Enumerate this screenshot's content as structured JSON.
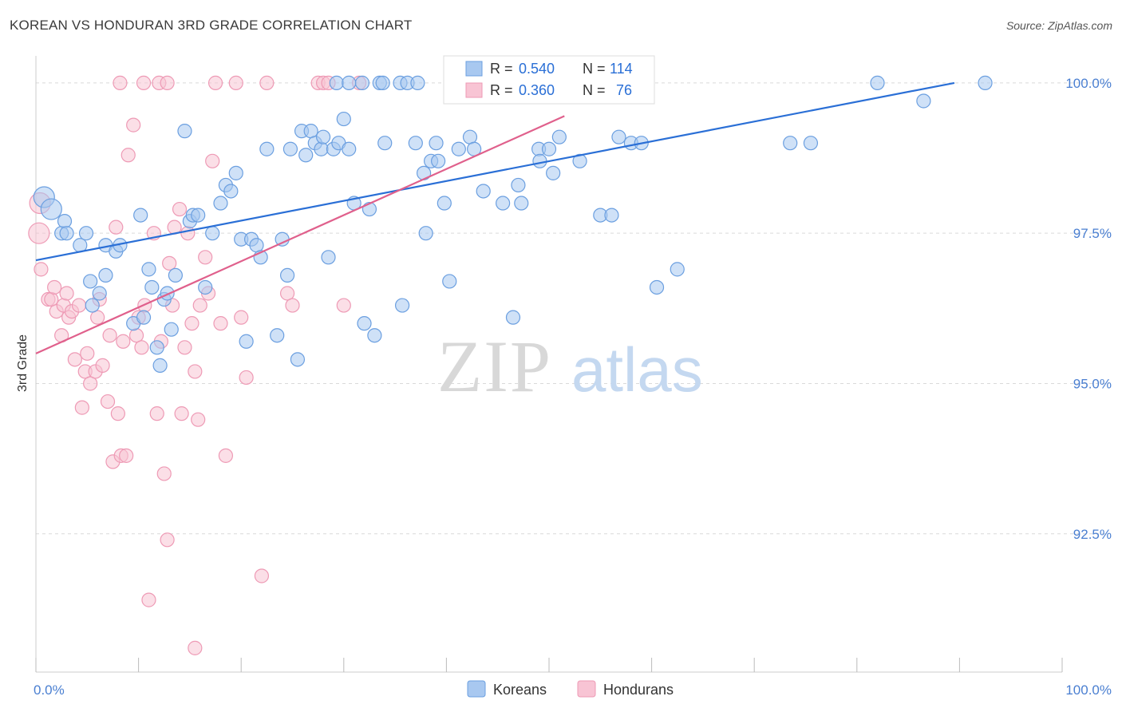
{
  "title": "KOREAN VS HONDURAN 3RD GRADE CORRELATION CHART",
  "source": "Source: ZipAtlas.com",
  "watermark": {
    "zip": "ZIP",
    "atlas": "atlas"
  },
  "colors": {
    "korean_fill": "#a8c8f0",
    "korean_stroke": "#6b9fe0",
    "korean_line": "#2a6fd6",
    "honduran_fill": "#f8c4d4",
    "honduran_stroke": "#ee9ab5",
    "honduran_line": "#e0608c",
    "grid": "#d9d9d9",
    "tick_text": "#4a7fd1"
  },
  "chart_data": {
    "type": "scatter",
    "title": "KOREAN VS HONDURAN 3RD GRADE CORRELATION CHART",
    "xlabel": "",
    "ylabel": "3rd Grade",
    "xlim": [
      0,
      100
    ],
    "ylim": [
      90.2,
      100.45
    ],
    "x_tick_labels": [
      {
        "x": 0,
        "label": "0.0%"
      },
      {
        "x": 100,
        "label": "100.0%"
      }
    ],
    "y_ticks": [
      {
        "y": 100.0,
        "label": "100.0%"
      },
      {
        "y": 97.5,
        "label": "97.5%"
      },
      {
        "y": 95.0,
        "label": "95.0%"
      },
      {
        "y": 92.5,
        "label": "92.5%"
      }
    ],
    "grid": true,
    "legend_position": "top-center",
    "legend": [
      {
        "name": "Koreans",
        "r_label": "R =",
        "r": "0.540",
        "n_label": "N =",
        "n": "114"
      },
      {
        "name": "Hondurans",
        "r_label": "R =",
        "r": "0.360",
        "n_label": "N =",
        "n": "76"
      }
    ],
    "series": [
      {
        "name": "Koreans",
        "trendline": {
          "x": [
            0,
            89.5
          ],
          "y": [
            97.05,
            100.0
          ]
        },
        "points": [
          [
            0.8,
            98.1
          ],
          [
            1.5,
            97.9
          ],
          [
            2.5,
            97.5
          ],
          [
            2.8,
            97.7
          ],
          [
            3.0,
            97.5
          ],
          [
            4.3,
            97.3
          ],
          [
            4.9,
            97.5
          ],
          [
            5.3,
            96.7
          ],
          [
            5.5,
            96.3
          ],
          [
            6.2,
            96.5
          ],
          [
            6.8,
            96.8
          ],
          [
            6.8,
            97.3
          ],
          [
            7.8,
            97.2
          ],
          [
            8.2,
            97.3
          ],
          [
            9.5,
            96.0
          ],
          [
            10.2,
            97.8
          ],
          [
            10.5,
            96.1
          ],
          [
            11.0,
            96.9
          ],
          [
            11.3,
            96.6
          ],
          [
            11.8,
            95.6
          ],
          [
            12.1,
            95.3
          ],
          [
            12.5,
            96.4
          ],
          [
            12.8,
            96.5
          ],
          [
            13.2,
            95.9
          ],
          [
            13.6,
            96.8
          ],
          [
            14.5,
            99.2
          ],
          [
            15.0,
            97.7
          ],
          [
            15.3,
            97.8
          ],
          [
            15.8,
            97.8
          ],
          [
            16.5,
            96.6
          ],
          [
            17.2,
            97.5
          ],
          [
            18.0,
            98.0
          ],
          [
            18.5,
            98.3
          ],
          [
            19.0,
            98.2
          ],
          [
            19.5,
            98.5
          ],
          [
            20.0,
            97.4
          ],
          [
            20.5,
            95.7
          ],
          [
            21.0,
            97.4
          ],
          [
            21.5,
            97.3
          ],
          [
            21.9,
            97.1
          ],
          [
            22.5,
            98.9
          ],
          [
            23.5,
            95.8
          ],
          [
            24.0,
            97.4
          ],
          [
            24.5,
            96.8
          ],
          [
            24.8,
            98.9
          ],
          [
            25.5,
            95.4
          ],
          [
            25.9,
            99.2
          ],
          [
            26.3,
            98.8
          ],
          [
            26.8,
            99.2
          ],
          [
            27.2,
            99.0
          ],
          [
            27.8,
            98.9
          ],
          [
            28.0,
            99.1
          ],
          [
            28.5,
            97.1
          ],
          [
            29.0,
            98.9
          ],
          [
            29.5,
            99.0
          ],
          [
            30.0,
            99.4
          ],
          [
            30.5,
            98.9
          ],
          [
            31.0,
            98.0
          ],
          [
            32.0,
            96.0
          ],
          [
            32.5,
            97.9
          ],
          [
            33.0,
            95.8
          ],
          [
            33.5,
            100.0
          ],
          [
            34.0,
            99.0
          ],
          [
            35.5,
            100.0
          ],
          [
            35.7,
            96.3
          ],
          [
            36.2,
            100.0
          ],
          [
            37.0,
            99.0
          ],
          [
            37.8,
            98.5
          ],
          [
            38.0,
            97.5
          ],
          [
            38.5,
            98.7
          ],
          [
            39.0,
            99.0
          ],
          [
            39.2,
            98.7
          ],
          [
            39.8,
            98.0
          ],
          [
            40.3,
            96.7
          ],
          [
            40.5,
            100.0
          ],
          [
            41.2,
            98.9
          ],
          [
            42.0,
            100.0
          ],
          [
            42.3,
            99.1
          ],
          [
            42.7,
            98.9
          ],
          [
            43.0,
            100.0
          ],
          [
            43.6,
            98.2
          ],
          [
            45.5,
            98.0
          ],
          [
            46.5,
            96.1
          ],
          [
            47.0,
            98.3
          ],
          [
            47.3,
            98.0
          ],
          [
            48.0,
            100.0
          ],
          [
            48.5,
            100.0
          ],
          [
            49.0,
            98.9
          ],
          [
            49.1,
            98.7
          ],
          [
            50.0,
            98.9
          ],
          [
            50.4,
            98.5
          ],
          [
            51.0,
            99.1
          ],
          [
            52.5,
            100.0
          ],
          [
            53.0,
            98.7
          ],
          [
            55.0,
            97.8
          ],
          [
            55.5,
            100.0
          ],
          [
            56.1,
            97.8
          ],
          [
            56.8,
            99.1
          ],
          [
            58.0,
            99.0
          ],
          [
            59.0,
            99.0
          ],
          [
            60.5,
            96.6
          ],
          [
            62.5,
            96.9
          ],
          [
            73.5,
            99.0
          ],
          [
            75.5,
            99.0
          ],
          [
            82.0,
            100.0
          ],
          [
            86.5,
            99.7
          ],
          [
            92.5,
            100.0
          ],
          [
            58.8,
            100.0
          ],
          [
            53.7,
            100.0
          ],
          [
            33.8,
            100.0
          ],
          [
            31.8,
            100.0
          ],
          [
            29.3,
            100.0
          ],
          [
            30.5,
            100.0
          ],
          [
            37.2,
            100.0
          ]
        ]
      },
      {
        "name": "Hondurans",
        "trendline": {
          "x": [
            0,
            51.5
          ],
          "y": [
            95.5,
            99.45
          ]
        },
        "points": [
          [
            0.3,
            97.5
          ],
          [
            0.4,
            98.0
          ],
          [
            0.5,
            96.9
          ],
          [
            1.2,
            96.4
          ],
          [
            1.5,
            96.4
          ],
          [
            1.8,
            96.6
          ],
          [
            2.0,
            96.2
          ],
          [
            2.5,
            95.8
          ],
          [
            2.7,
            96.3
          ],
          [
            3.0,
            96.5
          ],
          [
            3.2,
            96.1
          ],
          [
            3.5,
            96.2
          ],
          [
            3.8,
            95.4
          ],
          [
            4.2,
            96.3
          ],
          [
            4.5,
            94.6
          ],
          [
            4.8,
            95.2
          ],
          [
            5.0,
            95.5
          ],
          [
            5.3,
            95.0
          ],
          [
            5.8,
            95.2
          ],
          [
            6.0,
            96.1
          ],
          [
            6.2,
            96.4
          ],
          [
            6.5,
            95.3
          ],
          [
            7.0,
            94.7
          ],
          [
            7.2,
            95.8
          ],
          [
            7.5,
            93.7
          ],
          [
            7.8,
            97.6
          ],
          [
            8.0,
            94.5
          ],
          [
            8.3,
            93.8
          ],
          [
            8.5,
            95.7
          ],
          [
            8.8,
            93.8
          ],
          [
            9.0,
            98.8
          ],
          [
            9.5,
            99.3
          ],
          [
            9.8,
            95.8
          ],
          [
            10.0,
            96.1
          ],
          [
            10.3,
            95.6
          ],
          [
            10.6,
            96.3
          ],
          [
            11.0,
            91.4
          ],
          [
            11.5,
            97.5
          ],
          [
            11.8,
            94.5
          ],
          [
            12.0,
            100.0
          ],
          [
            12.2,
            95.7
          ],
          [
            12.5,
            93.5
          ],
          [
            12.8,
            92.4
          ],
          [
            13.0,
            97.0
          ],
          [
            13.3,
            96.3
          ],
          [
            13.5,
            97.6
          ],
          [
            14.0,
            97.9
          ],
          [
            14.2,
            94.5
          ],
          [
            14.5,
            95.6
          ],
          [
            14.8,
            97.5
          ],
          [
            15.2,
            96.0
          ],
          [
            15.5,
            95.2
          ],
          [
            15.8,
            94.4
          ],
          [
            16.0,
            96.3
          ],
          [
            16.5,
            97.1
          ],
          [
            16.8,
            96.5
          ],
          [
            17.2,
            98.7
          ],
          [
            17.5,
            100.0
          ],
          [
            18.0,
            96.0
          ],
          [
            18.5,
            93.8
          ],
          [
            19.5,
            100.0
          ],
          [
            20.0,
            96.1
          ],
          [
            20.5,
            95.1
          ],
          [
            22.0,
            91.8
          ],
          [
            22.5,
            100.0
          ],
          [
            24.5,
            96.5
          ],
          [
            25.0,
            96.3
          ],
          [
            27.5,
            100.0
          ],
          [
            28.0,
            100.0
          ],
          [
            28.5,
            100.0
          ],
          [
            30.0,
            96.3
          ],
          [
            31.5,
            100.0
          ],
          [
            10.5,
            100.0
          ],
          [
            12.8,
            100.0
          ],
          [
            15.5,
            90.6
          ],
          [
            8.2,
            100.0
          ]
        ]
      }
    ]
  }
}
